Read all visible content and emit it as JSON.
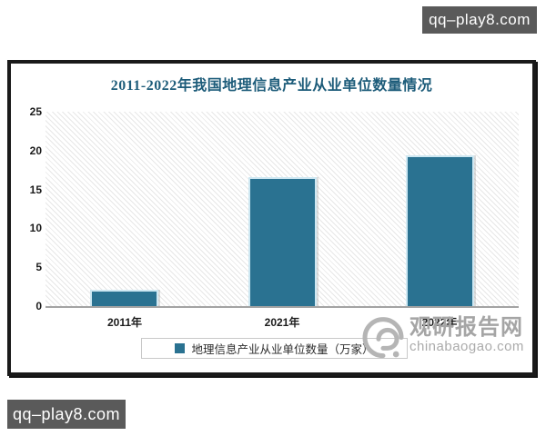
{
  "badges": {
    "top": {
      "text": "qq–play8.com"
    },
    "bottom": {
      "text": "qq–play8.com"
    },
    "background_color": "#5a5a5a"
  },
  "watermark": {
    "site_name": "观研报告网",
    "site_url": "chinabaogao.com",
    "color": "#a8a8a8",
    "logo": "swirl-logo"
  },
  "chart_data": {
    "type": "bar",
    "title": "2011-2022年我国地理信息产业从业单位数量情况",
    "title_color": "#1d5c7a",
    "categories": [
      "2011年",
      "2021年",
      "2022年"
    ],
    "series": [
      {
        "name": "地理信息产业从业单位数量（万家）",
        "values": [
          2.1,
          16.6,
          19.4
        ]
      }
    ],
    "legend": {
      "label": "地理信息产业从业单位数量（万家）",
      "position": "bottom",
      "marker_color": "#2a7291"
    },
    "xlabel": "",
    "ylabel": "",
    "ylim": [
      0,
      25
    ],
    "yticks": [
      0,
      5,
      10,
      15,
      20,
      25
    ],
    "bar_color": "#2a7291",
    "bar_edge_color": "#cfe8f2",
    "plot_background": "diagonal-hatch",
    "grid": false
  }
}
